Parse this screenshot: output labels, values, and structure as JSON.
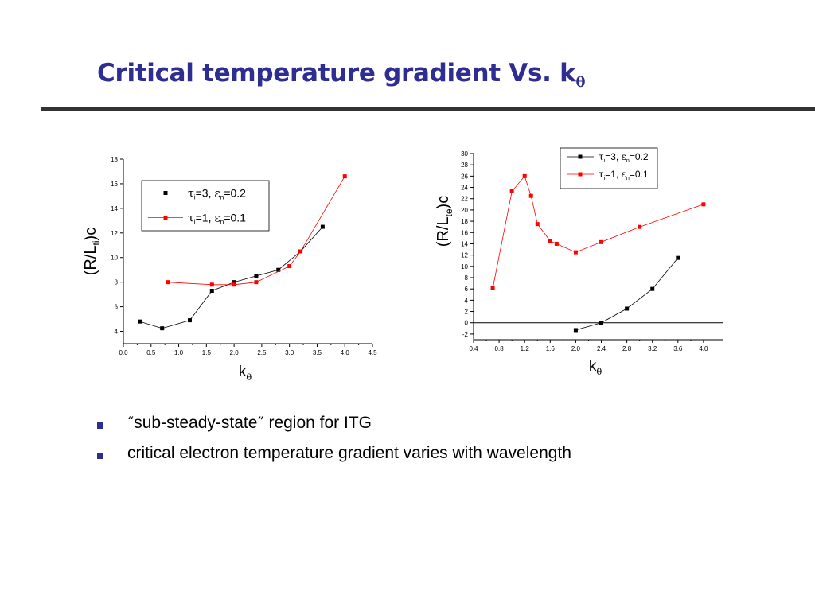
{
  "slide": {
    "title_main": "Critical temperature gradient Vs. k",
    "title_sub": "θ",
    "bullets": [
      {
        "quote_open": "“",
        "text_a": "sub-steady-state",
        "quote_close": "”",
        "text_b": " region for ITG"
      },
      {
        "text": "critical electron temperature gradient varies with wavelength"
      }
    ],
    "colors": {
      "title": "#2d2d92",
      "bullet": "#2d2d92",
      "series_black": "#000000",
      "series_red": "#ff0000"
    }
  },
  "chart_data": [
    {
      "type": "line",
      "xlabel": "k",
      "xlabel_sub": "θ",
      "ylabel": "(R/L",
      "ylabel_sub": "ti",
      "ylabel_end": ")c",
      "xlim": [
        0.0,
        4.5
      ],
      "ylim": [
        3,
        18
      ],
      "xticks": [
        "0.0",
        "0.5",
        "1.0",
        "1.5",
        "2.0",
        "2.5",
        "3.0",
        "3.5",
        "4.0",
        "4.5"
      ],
      "yticks": [
        "4",
        "6",
        "8",
        "10",
        "12",
        "14",
        "16",
        "18"
      ],
      "legend_position": "top-left",
      "series": [
        {
          "name": "τi=3, εn=0.2",
          "legend_tau": "τ",
          "legend_i": "i",
          "legend_mid": "=3, ",
          "legend_eps": "ε",
          "legend_n": "n",
          "legend_end": "=0.2",
          "color": "#000000",
          "x": [
            0.3,
            0.7,
            1.2,
            1.6,
            2.0,
            2.4,
            2.8,
            3.2,
            3.6
          ],
          "y": [
            4.8,
            4.25,
            4.9,
            7.3,
            8.0,
            8.5,
            9.0,
            10.5,
            12.5
          ]
        },
        {
          "name": "τi=1, εn=0.1",
          "legend_tau": "τ",
          "legend_i": "i",
          "legend_mid": "=1, ",
          "legend_eps": "ε",
          "legend_n": "n",
          "legend_end": "=0.1",
          "color": "#ff0000",
          "x": [
            0.8,
            1.6,
            2.0,
            2.4,
            3.0,
            3.2,
            4.0
          ],
          "y": [
            8.0,
            7.8,
            7.8,
            8.0,
            9.3,
            10.5,
            16.6
          ]
        }
      ]
    },
    {
      "type": "line",
      "xlabel": "k",
      "xlabel_sub": "θ",
      "ylabel": "(R/L",
      "ylabel_sub": "te",
      "ylabel_end": ")c",
      "xlim": [
        0.4,
        4.3
      ],
      "ylim": [
        -3,
        30
      ],
      "xticks": [
        "0.4",
        "0.8",
        "1.2",
        "1.6",
        "2.0",
        "2.4",
        "2.8",
        "3.2",
        "3.6",
        "4.0"
      ],
      "yticks": [
        "-2",
        "0",
        "2",
        "4",
        "6",
        "8",
        "10",
        "12",
        "14",
        "16",
        "18",
        "20",
        "22",
        "24",
        "26",
        "28",
        "30"
      ],
      "zero_line": true,
      "legend_position": "top-right",
      "series": [
        {
          "name": "τi=3, εn=0.2",
          "legend_tau": "τ",
          "legend_i": "i",
          "legend_mid": "=3, ",
          "legend_eps": "ε",
          "legend_n": "n",
          "legend_end": "=0.2",
          "color": "#000000",
          "x": [
            2.0,
            2.4,
            2.8,
            3.2,
            3.6
          ],
          "y": [
            -1.3,
            0.0,
            2.5,
            6.0,
            11.5
          ]
        },
        {
          "name": "τi=1, εn=0.1",
          "legend_tau": "τ",
          "legend_i": "i",
          "legend_mid": "=1, ",
          "legend_eps": "ε",
          "legend_n": "n",
          "legend_end": "=0.1",
          "color": "#ff0000",
          "x": [
            0.7,
            1.0,
            1.2,
            1.3,
            1.4,
            1.6,
            1.7,
            2.0,
            2.4,
            3.0,
            4.0
          ],
          "y": [
            6.1,
            23.3,
            26.0,
            22.5,
            17.5,
            14.5,
            14.0,
            12.5,
            14.3,
            17.0,
            21.0
          ]
        }
      ]
    }
  ]
}
